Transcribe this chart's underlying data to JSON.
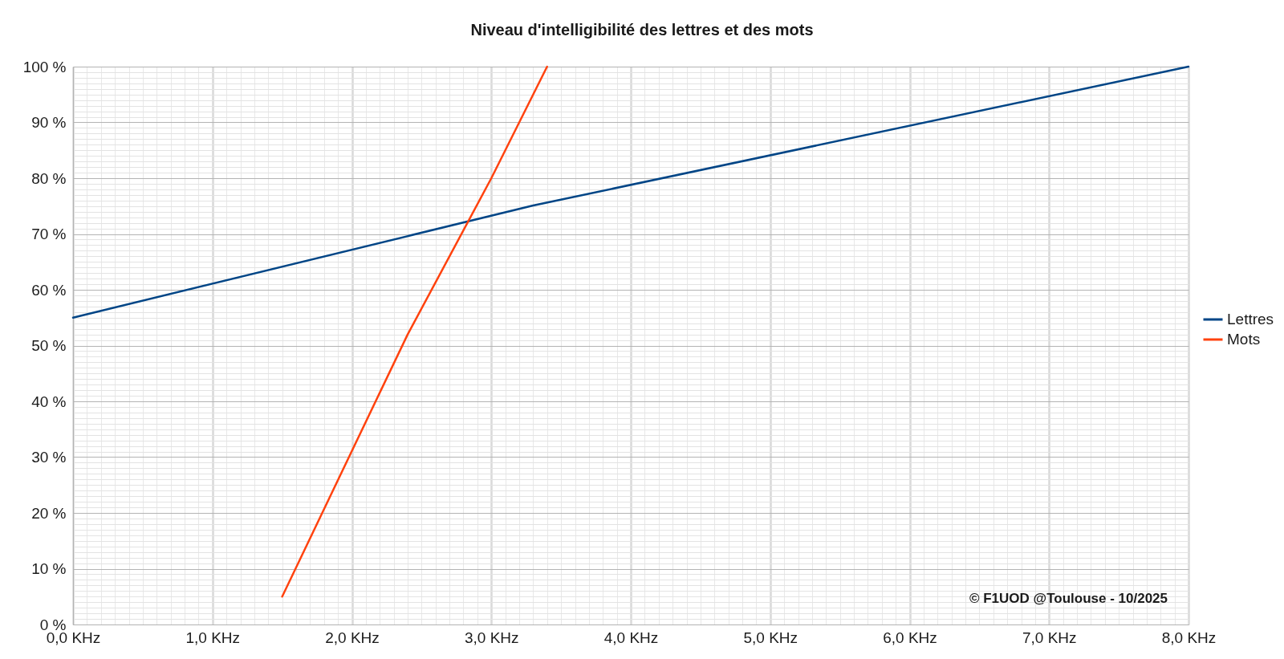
{
  "chart_data": {
    "type": "line",
    "title": "Niveau d'intelligibilité des lettres et des mots",
    "series": [
      {
        "name": "Lettres",
        "color": "#004586",
        "x": [
          0,
          3.3,
          8
        ],
        "values": [
          55,
          75.1,
          100
        ]
      },
      {
        "name": "Mots",
        "color": "#ff420e",
        "x": [
          1.5,
          2.4,
          3.0,
          3.4
        ],
        "values": [
          5,
          52,
          80,
          100
        ]
      }
    ],
    "xlim": [
      0,
      8
    ],
    "xticks": [
      {
        "value": 0,
        "label": "0,0 KHz"
      },
      {
        "value": 0.1,
        "label": null
      },
      {
        "value": 0.2,
        "label": null
      },
      {
        "value": 0.3,
        "label": null
      },
      {
        "value": 0.4,
        "label": null
      },
      {
        "value": 0.5,
        "label": null
      },
      {
        "value": 0.6,
        "label": null
      },
      {
        "value": 0.7,
        "label": null
      },
      {
        "value": 0.8,
        "label": null
      },
      {
        "value": 0.9,
        "label": null
      },
      {
        "value": 1,
        "label": "1,0 KHz"
      },
      {
        "value": 1.1,
        "label": null
      },
      {
        "value": 1.2,
        "label": null
      },
      {
        "value": 1.3,
        "label": null
      },
      {
        "value": 1.4,
        "label": null
      },
      {
        "value": 1.5,
        "label": null
      },
      {
        "value": 1.6,
        "label": null
      },
      {
        "value": 1.7,
        "label": null
      },
      {
        "value": 1.8,
        "label": null
      },
      {
        "value": 1.9,
        "label": null
      },
      {
        "value": 2,
        "label": "2,0 KHz"
      },
      {
        "value": 2.1,
        "label": null
      },
      {
        "value": 2.2,
        "label": null
      },
      {
        "value": 2.3,
        "label": null
      },
      {
        "value": 2.4,
        "label": null
      },
      {
        "value": 2.5,
        "label": null
      },
      {
        "value": 2.6,
        "label": null
      },
      {
        "value": 2.7,
        "label": null
      },
      {
        "value": 2.8,
        "label": null
      },
      {
        "value": 2.9,
        "label": null
      },
      {
        "value": 3,
        "label": "3,0 KHz"
      },
      {
        "value": 3.1,
        "label": null
      },
      {
        "value": 3.2,
        "label": null
      },
      {
        "value": 3.3,
        "label": null
      },
      {
        "value": 3.4,
        "label": null
      },
      {
        "value": 3.5,
        "label": null
      },
      {
        "value": 3.6,
        "label": null
      },
      {
        "value": 3.7,
        "label": null
      },
      {
        "value": 3.8,
        "label": null
      },
      {
        "value": 3.9,
        "label": null
      },
      {
        "value": 4,
        "label": "4,0 KHz"
      },
      {
        "value": 4.1,
        "label": null
      },
      {
        "value": 4.2,
        "label": null
      },
      {
        "value": 4.3,
        "label": null
      },
      {
        "value": 4.4,
        "label": null
      },
      {
        "value": 4.5,
        "label": null
      },
      {
        "value": 4.6,
        "label": null
      },
      {
        "value": 4.7,
        "label": null
      },
      {
        "value": 4.8,
        "label": null
      },
      {
        "value": 4.9,
        "label": null
      },
      {
        "value": 5,
        "label": "5,0 KHz"
      },
      {
        "value": 5.1,
        "label": null
      },
      {
        "value": 5.2,
        "label": null
      },
      {
        "value": 5.3,
        "label": null
      },
      {
        "value": 5.4,
        "label": null
      },
      {
        "value": 5.5,
        "label": null
      },
      {
        "value": 5.6,
        "label": null
      },
      {
        "value": 5.7,
        "label": null
      },
      {
        "value": 5.8,
        "label": null
      },
      {
        "value": 5.9,
        "label": null
      },
      {
        "value": 6,
        "label": "6,0 KHz"
      },
      {
        "value": 6.1,
        "label": null
      },
      {
        "value": 6.2,
        "label": null
      },
      {
        "value": 6.3,
        "label": null
      },
      {
        "value": 6.4,
        "label": null
      },
      {
        "value": 6.5,
        "label": null
      },
      {
        "value": 6.6,
        "label": null
      },
      {
        "value": 6.7,
        "label": null
      },
      {
        "value": 6.8,
        "label": null
      },
      {
        "value": 6.9,
        "label": null
      },
      {
        "value": 7,
        "label": "7,0 KHz"
      },
      {
        "value": 7.1,
        "label": null
      },
      {
        "value": 7.2,
        "label": null
      },
      {
        "value": 7.3,
        "label": null
      },
      {
        "value": 7.4,
        "label": null
      },
      {
        "value": 7.5,
        "label": null
      },
      {
        "value": 7.6,
        "label": null
      },
      {
        "value": 7.7,
        "label": null
      },
      {
        "value": 7.8,
        "label": null
      },
      {
        "value": 7.9,
        "label": null
      },
      {
        "value": 8,
        "label": "8,0 KHz"
      }
    ],
    "ylim": [
      0,
      100
    ],
    "yticks": [
      {
        "value": 0,
        "label": "0 %"
      },
      {
        "value": 1,
        "label": null
      },
      {
        "value": 2,
        "label": null
      },
      {
        "value": 3,
        "label": null
      },
      {
        "value": 4,
        "label": null
      },
      {
        "value": 5,
        "label": null
      },
      {
        "value": 6,
        "label": null
      },
      {
        "value": 7,
        "label": null
      },
      {
        "value": 8,
        "label": null
      },
      {
        "value": 9,
        "label": null
      },
      {
        "value": 10,
        "label": "10 %"
      },
      {
        "value": 11,
        "label": null
      },
      {
        "value": 12,
        "label": null
      },
      {
        "value": 13,
        "label": null
      },
      {
        "value": 14,
        "label": null
      },
      {
        "value": 15,
        "label": null
      },
      {
        "value": 16,
        "label": null
      },
      {
        "value": 17,
        "label": null
      },
      {
        "value": 18,
        "label": null
      },
      {
        "value": 19,
        "label": null
      },
      {
        "value": 20,
        "label": "20 %"
      },
      {
        "value": 21,
        "label": null
      },
      {
        "value": 22,
        "label": null
      },
      {
        "value": 23,
        "label": null
      },
      {
        "value": 24,
        "label": null
      },
      {
        "value": 25,
        "label": null
      },
      {
        "value": 26,
        "label": null
      },
      {
        "value": 27,
        "label": null
      },
      {
        "value": 28,
        "label": null
      },
      {
        "value": 29,
        "label": null
      },
      {
        "value": 30,
        "label": "30 %"
      },
      {
        "value": 31,
        "label": null
      },
      {
        "value": 32,
        "label": null
      },
      {
        "value": 33,
        "label": null
      },
      {
        "value": 34,
        "label": null
      },
      {
        "value": 35,
        "label": null
      },
      {
        "value": 36,
        "label": null
      },
      {
        "value": 37,
        "label": null
      },
      {
        "value": 38,
        "label": null
      },
      {
        "value": 39,
        "label": null
      },
      {
        "value": 40,
        "label": "40 %"
      },
      {
        "value": 41,
        "label": null
      },
      {
        "value": 42,
        "label": null
      },
      {
        "value": 43,
        "label": null
      },
      {
        "value": 44,
        "label": null
      },
      {
        "value": 45,
        "label": null
      },
      {
        "value": 46,
        "label": null
      },
      {
        "value": 47,
        "label": null
      },
      {
        "value": 48,
        "label": null
      },
      {
        "value": 49,
        "label": null
      },
      {
        "value": 50,
        "label": "50 %"
      },
      {
        "value": 51,
        "label": null
      },
      {
        "value": 52,
        "label": null
      },
      {
        "value": 53,
        "label": null
      },
      {
        "value": 54,
        "label": null
      },
      {
        "value": 55,
        "label": null
      },
      {
        "value": 56,
        "label": null
      },
      {
        "value": 57,
        "label": null
      },
      {
        "value": 58,
        "label": null
      },
      {
        "value": 59,
        "label": null
      },
      {
        "value": 60,
        "label": "60 %"
      },
      {
        "value": 61,
        "label": null
      },
      {
        "value": 62,
        "label": null
      },
      {
        "value": 63,
        "label": null
      },
      {
        "value": 64,
        "label": null
      },
      {
        "value": 65,
        "label": null
      },
      {
        "value": 66,
        "label": null
      },
      {
        "value": 67,
        "label": null
      },
      {
        "value": 68,
        "label": null
      },
      {
        "value": 69,
        "label": null
      },
      {
        "value": 70,
        "label": "70 %"
      },
      {
        "value": 71,
        "label": null
      },
      {
        "value": 72,
        "label": null
      },
      {
        "value": 73,
        "label": null
      },
      {
        "value": 74,
        "label": null
      },
      {
        "value": 75,
        "label": null
      },
      {
        "value": 76,
        "label": null
      },
      {
        "value": 77,
        "label": null
      },
      {
        "value": 78,
        "label": null
      },
      {
        "value": 79,
        "label": null
      },
      {
        "value": 80,
        "label": "80 %"
      },
      {
        "value": 81,
        "label": null
      },
      {
        "value": 82,
        "label": null
      },
      {
        "value": 83,
        "label": null
      },
      {
        "value": 84,
        "label": null
      },
      {
        "value": 85,
        "label": null
      },
      {
        "value": 86,
        "label": null
      },
      {
        "value": 87,
        "label": null
      },
      {
        "value": 88,
        "label": null
      },
      {
        "value": 89,
        "label": null
      },
      {
        "value": 90,
        "label": "90 %"
      },
      {
        "value": 91,
        "label": null
      },
      {
        "value": 92,
        "label": null
      },
      {
        "value": 93,
        "label": null
      },
      {
        "value": 94,
        "label": null
      },
      {
        "value": 95,
        "label": null
      },
      {
        "value": 96,
        "label": null
      },
      {
        "value": 97,
        "label": null
      },
      {
        "value": 98,
        "label": null
      },
      {
        "value": 99,
        "label": null
      },
      {
        "value": 100,
        "label": "100 %"
      }
    ],
    "grid": true,
    "legend": "right",
    "annotations": [
      "© F1UOD @Toulouse - 10/2025"
    ]
  }
}
